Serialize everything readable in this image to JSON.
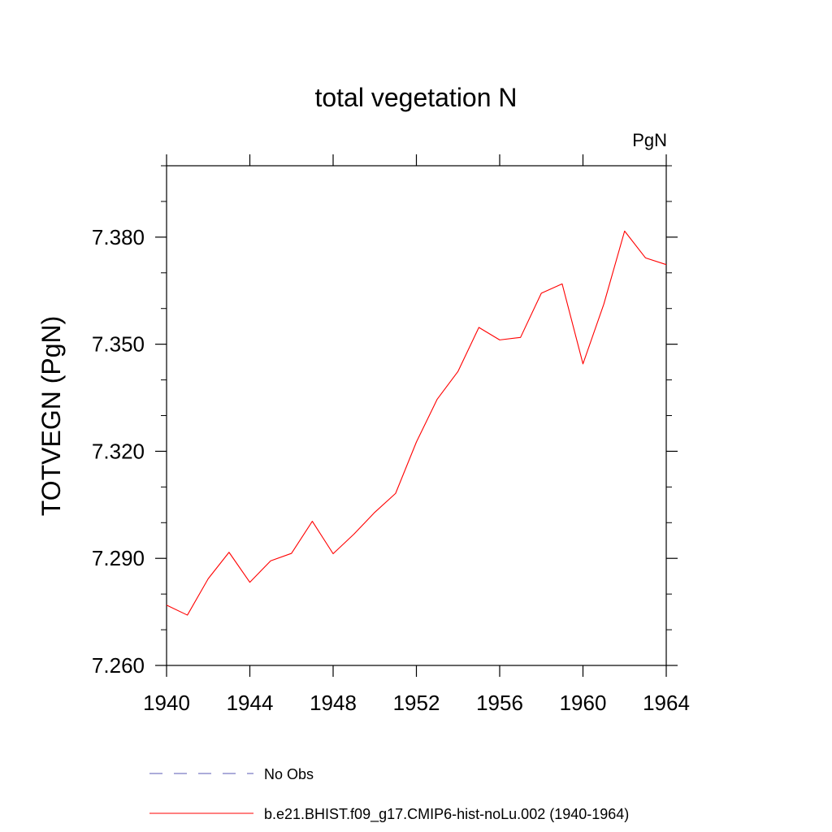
{
  "chart_data": {
    "type": "line",
    "title": "total vegetation N",
    "units_label": "PgN",
    "ylabel": "TOTVEGN  (PgN)",
    "xlabel": "",
    "xlim": [
      1940,
      1964
    ],
    "ylim": [
      7.26,
      7.4
    ],
    "x_ticks": [
      1940,
      1944,
      1948,
      1952,
      1956,
      1960,
      1964
    ],
    "x_tick_labels": [
      "1940",
      "1944",
      "1948",
      "1952",
      "1956",
      "1960",
      "1964"
    ],
    "y_ticks": [
      7.26,
      7.29,
      7.32,
      7.35,
      7.38
    ],
    "y_tick_labels": [
      "7.260",
      "7.290",
      "7.320",
      "7.350",
      "7.380"
    ],
    "grid": false,
    "legend_placement": "bottom",
    "series": [
      {
        "name": "b.e21.BHIST.f09_g17.CMIP6-hist-noLu.002 (1940-1964)",
        "color": "#ff0000",
        "dash": "solid",
        "x": [
          1940,
          1941,
          1942,
          1943,
          1944,
          1945,
          1946,
          1947,
          1948,
          1949,
          1950,
          1951,
          1952,
          1953,
          1954,
          1955,
          1956,
          1957,
          1958,
          1959,
          1960,
          1961,
          1962,
          1963,
          1964
        ],
        "y": [
          7.2769,
          7.2741,
          7.2843,
          7.2917,
          7.2833,
          7.2893,
          7.2914,
          7.3004,
          7.2913,
          7.2968,
          7.3029,
          7.3082,
          7.3226,
          7.3346,
          7.3424,
          7.3547,
          7.3512,
          7.3519,
          7.3643,
          7.3669,
          7.3445,
          7.3612,
          7.3817,
          7.3742,
          7.3723
        ]
      }
    ],
    "legend": [
      {
        "label": "No Obs",
        "color": "#5a5ab4",
        "dash": "dashed"
      },
      {
        "label": "b.e21.BHIST.f09_g17.CMIP6-hist-noLu.002 (1940-1964)",
        "color": "#ff0000",
        "dash": "solid"
      }
    ]
  }
}
